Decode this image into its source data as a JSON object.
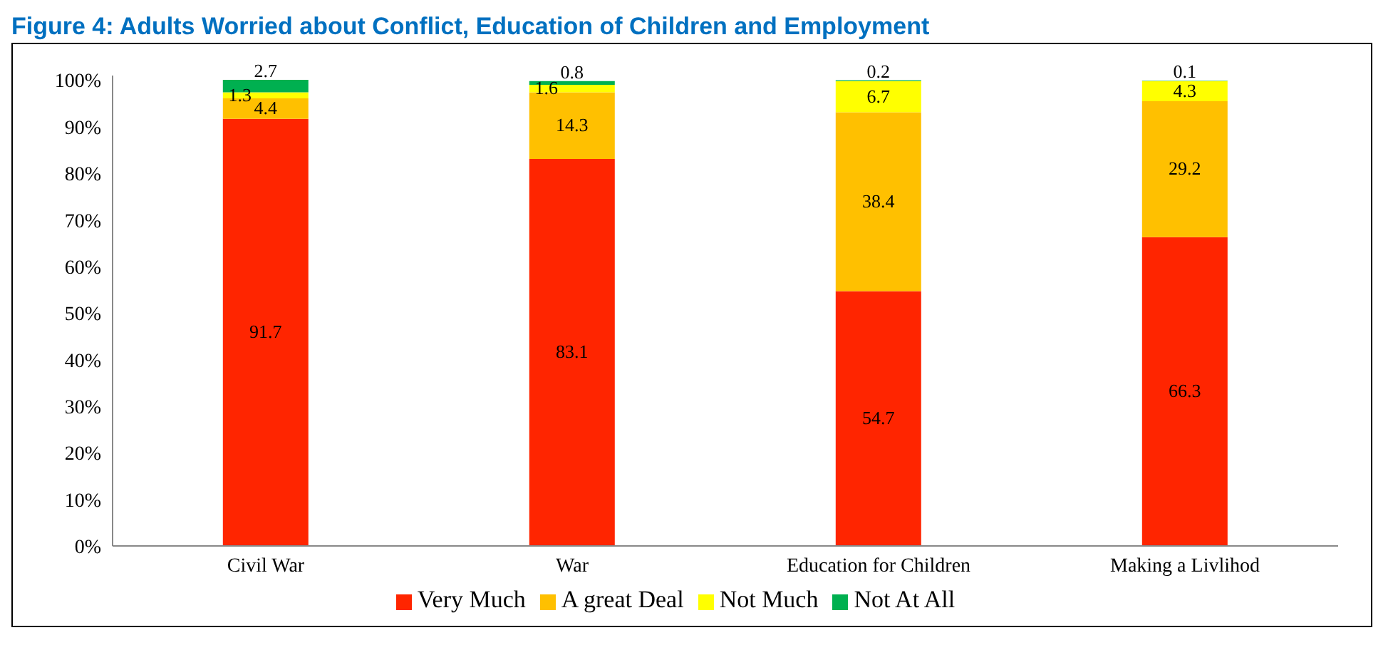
{
  "chart_data": {
    "type": "bar",
    "title": "Figure 4: Adults Worried about Conflict, Education of Children and Employment",
    "categories": [
      "Civil War",
      "War",
      "Education for Children",
      "Making a Livlihod"
    ],
    "stacked": true,
    "series": [
      {
        "name": "Very Much",
        "color": "#ff2500",
        "values": [
          91.7,
          83.1,
          54.7,
          66.3
        ]
      },
      {
        "name": "A great Deal",
        "color": "#ffc000",
        "values": [
          4.4,
          14.3,
          38.4,
          29.2
        ]
      },
      {
        "name": "Not Much",
        "color": "#ffff00",
        "values": [
          1.3,
          1.6,
          6.7,
          4.3
        ]
      },
      {
        "name": "Not At All",
        "color": "#00b050",
        "values": [
          2.7,
          0.8,
          0.2,
          0.1
        ]
      }
    ],
    "ylim": [
      0,
      101
    ],
    "yticks": [
      {
        "value": 0,
        "label": "0%"
      },
      {
        "value": 10,
        "label": "10%"
      },
      {
        "value": 20,
        "label": "20%"
      },
      {
        "value": 30,
        "label": "30%"
      },
      {
        "value": 40,
        "label": "40%"
      },
      {
        "value": 50,
        "label": "50%"
      },
      {
        "value": 60,
        "label": "60%"
      },
      {
        "value": 70,
        "label": "70%"
      },
      {
        "value": 80,
        "label": "80%"
      },
      {
        "value": 90,
        "label": "90%"
      },
      {
        "value": 100,
        "label": "100%"
      }
    ],
    "data_labels": true,
    "grid": false,
    "legend": "bottom"
  }
}
